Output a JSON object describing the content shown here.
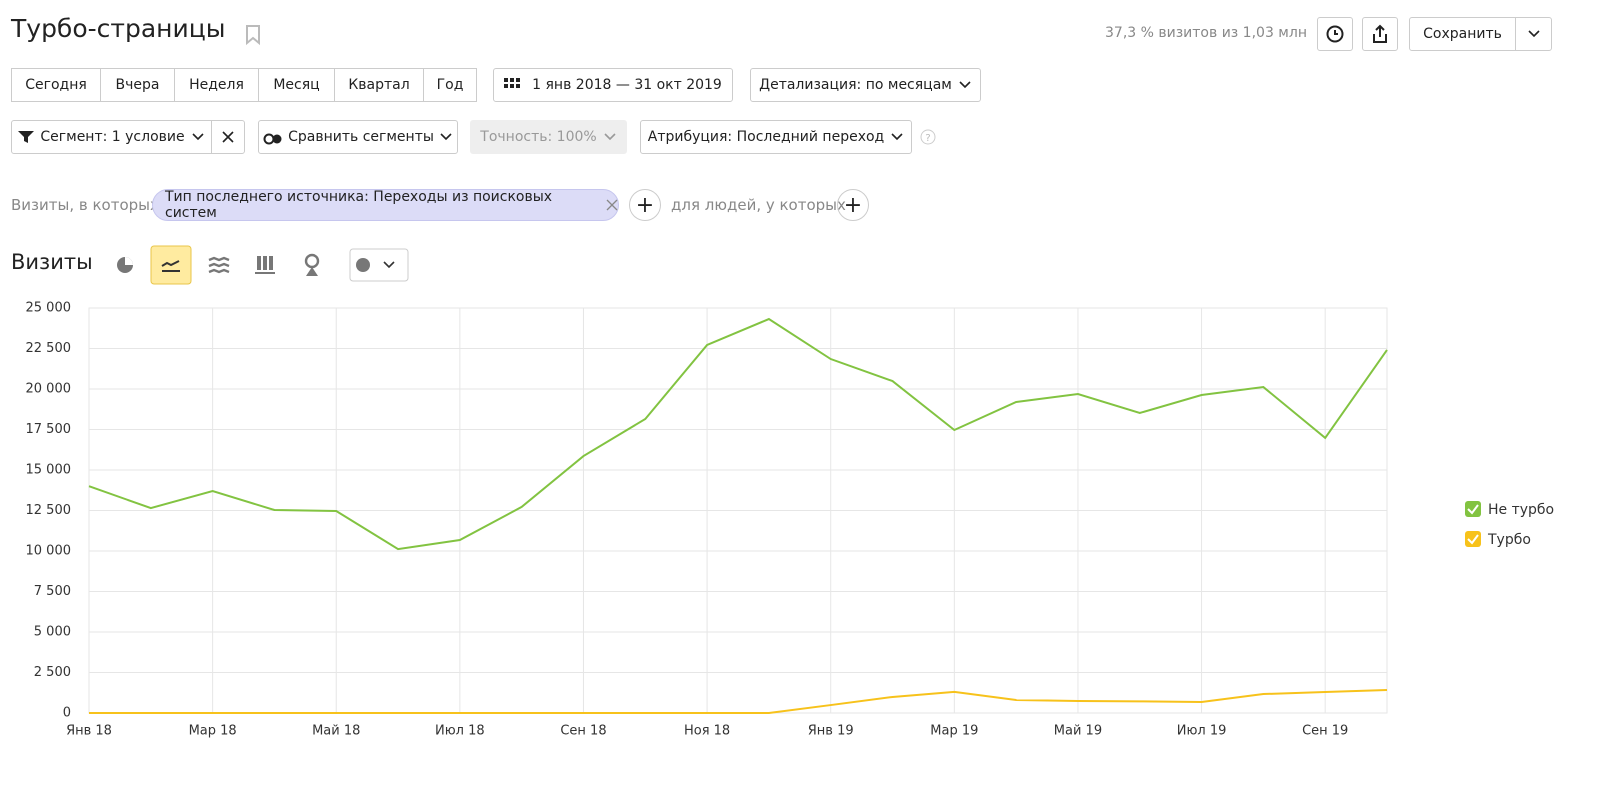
{
  "header": {
    "title": "Турбо-страницы",
    "visits_info": "37,3 % визитов из 1,03 млн",
    "save": "Сохранить"
  },
  "periods": [
    "Сегодня",
    "Вчера",
    "Неделя",
    "Месяц",
    "Квартал",
    "Год"
  ],
  "date_range": "1 янв 2018 — 31 окт 2019",
  "detail": "Детализация: по месяцам",
  "segment": "Сегмент: 1 условие",
  "compare": "Сравнить сегменты",
  "accuracy": "Точность: 100%",
  "attribution": "Атрибуция: Последний переход",
  "filter": {
    "prefix": "Визиты, в которых",
    "condition": "Тип последнего источника: Переходы из поисковых систем",
    "people": "для людей, у которых"
  },
  "chart_heading": "Визиты",
  "chart_data": {
    "type": "line",
    "categories": [
      "Янв 18",
      null,
      "Мар 18",
      null,
      "Май 18",
      null,
      "Июл 18",
      null,
      "Сен 18",
      null,
      "Ноя 18",
      null,
      "Янв 19",
      null,
      "Мар 19",
      null,
      "Май 19",
      null,
      "Июл 19",
      null,
      "Сен 19",
      null
    ],
    "series": [
      {
        "name": "Не турбо",
        "color": "#82c341",
        "values": [
          14000,
          12650,
          13700,
          12530,
          12470,
          10120,
          10680,
          12720,
          15860,
          18150,
          22720,
          24320,
          21850,
          20490,
          17470,
          19200,
          19690,
          18520,
          19630,
          20120,
          16980,
          22410
        ]
      },
      {
        "name": "Турбо",
        "color": "#f7c21b",
        "values": [
          0,
          0,
          0,
          0,
          0,
          0,
          0,
          0,
          0,
          0,
          0,
          0,
          490,
          990,
          1300,
          800,
          740,
          720,
          680,
          1170,
          1300,
          1420
        ]
      }
    ],
    "ylim": [
      0,
      25000
    ],
    "yticks": [
      0,
      {
        "value": 2500,
        "label": "2 500"
      },
      {
        "value": 5000,
        "label": "5 000"
      },
      {
        "value": 7500,
        "label": "7 500"
      },
      {
        "value": 10000,
        "label": "10 000"
      },
      {
        "value": 12500,
        "label": "12 500"
      },
      {
        "value": 15000,
        "label": "15 000"
      },
      {
        "value": 17500,
        "label": "17 500"
      },
      {
        "value": 20000,
        "label": "20 000"
      },
      {
        "value": 22500,
        "label": "22 500"
      },
      {
        "value": 25000,
        "label": "25 000"
      }
    ],
    "grid": true,
    "legend": "right"
  }
}
